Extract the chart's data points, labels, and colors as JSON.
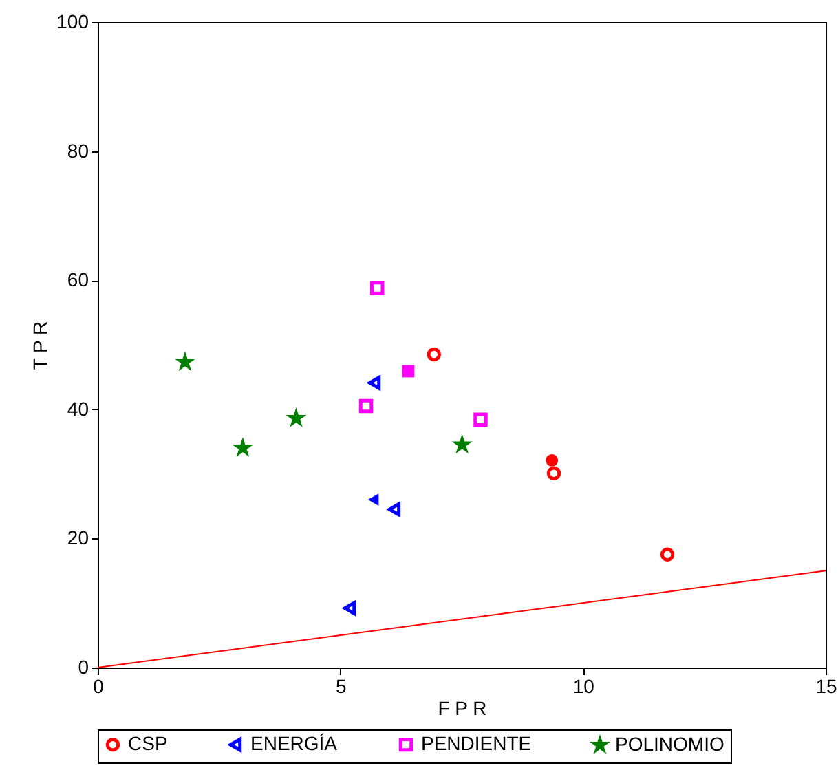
{
  "chart_data": {
    "type": "scatter",
    "xlabel": "F P R",
    "ylabel": "T P R",
    "xlim": [
      0,
      15
    ],
    "ylim": [
      0,
      100
    ],
    "xticks": [
      0,
      5,
      10,
      15
    ],
    "yticks": [
      0,
      20,
      40,
      60,
      80,
      100
    ],
    "grid": false,
    "legend": "bottom",
    "series": [
      {
        "name": "CSP",
        "color": "#ff0000",
        "marker": "circle",
        "x": [
          6.93,
          9.4,
          11.74
        ],
        "values": [
          48.5,
          30.1,
          17.5
        ]
      },
      {
        "name": "ENERGÍA",
        "color": "#0000ff",
        "marker": "triangle",
        "x": [
          5.7,
          6.11,
          5.19
        ],
        "values": [
          44.1,
          24.5,
          9.2
        ]
      },
      {
        "name": "PENDIENTE",
        "color": "#ff00ff",
        "marker": "square",
        "x": [
          5.76,
          5.53,
          7.89
        ],
        "values": [
          58.8,
          40.5,
          38.4
        ]
      },
      {
        "name": "POLINOMIO",
        "color": "#008000",
        "marker": "star",
        "x": [
          1.8,
          4.09,
          2.99,
          7.51
        ],
        "values": [
          47.3,
          38.6,
          34.0,
          34.5
        ]
      },
      {
        "color": "#ff0000",
        "marker": "circle",
        "x": [
          9.36
        ],
        "values": [
          32.1
        ]
      },
      {
        "color": "#0000ff",
        "marker": "triangle",
        "x": [
          5.68
        ],
        "values": [
          26.0
        ]
      },
      {
        "color": "#ff00ff",
        "marker": "square",
        "x": [
          6.4
        ],
        "values": [
          45.9
        ]
      },
      {
        "type": "line",
        "color": "#ff0000",
        "x": [
          0,
          15
        ],
        "values": [
          0,
          15
        ]
      }
    ]
  }
}
